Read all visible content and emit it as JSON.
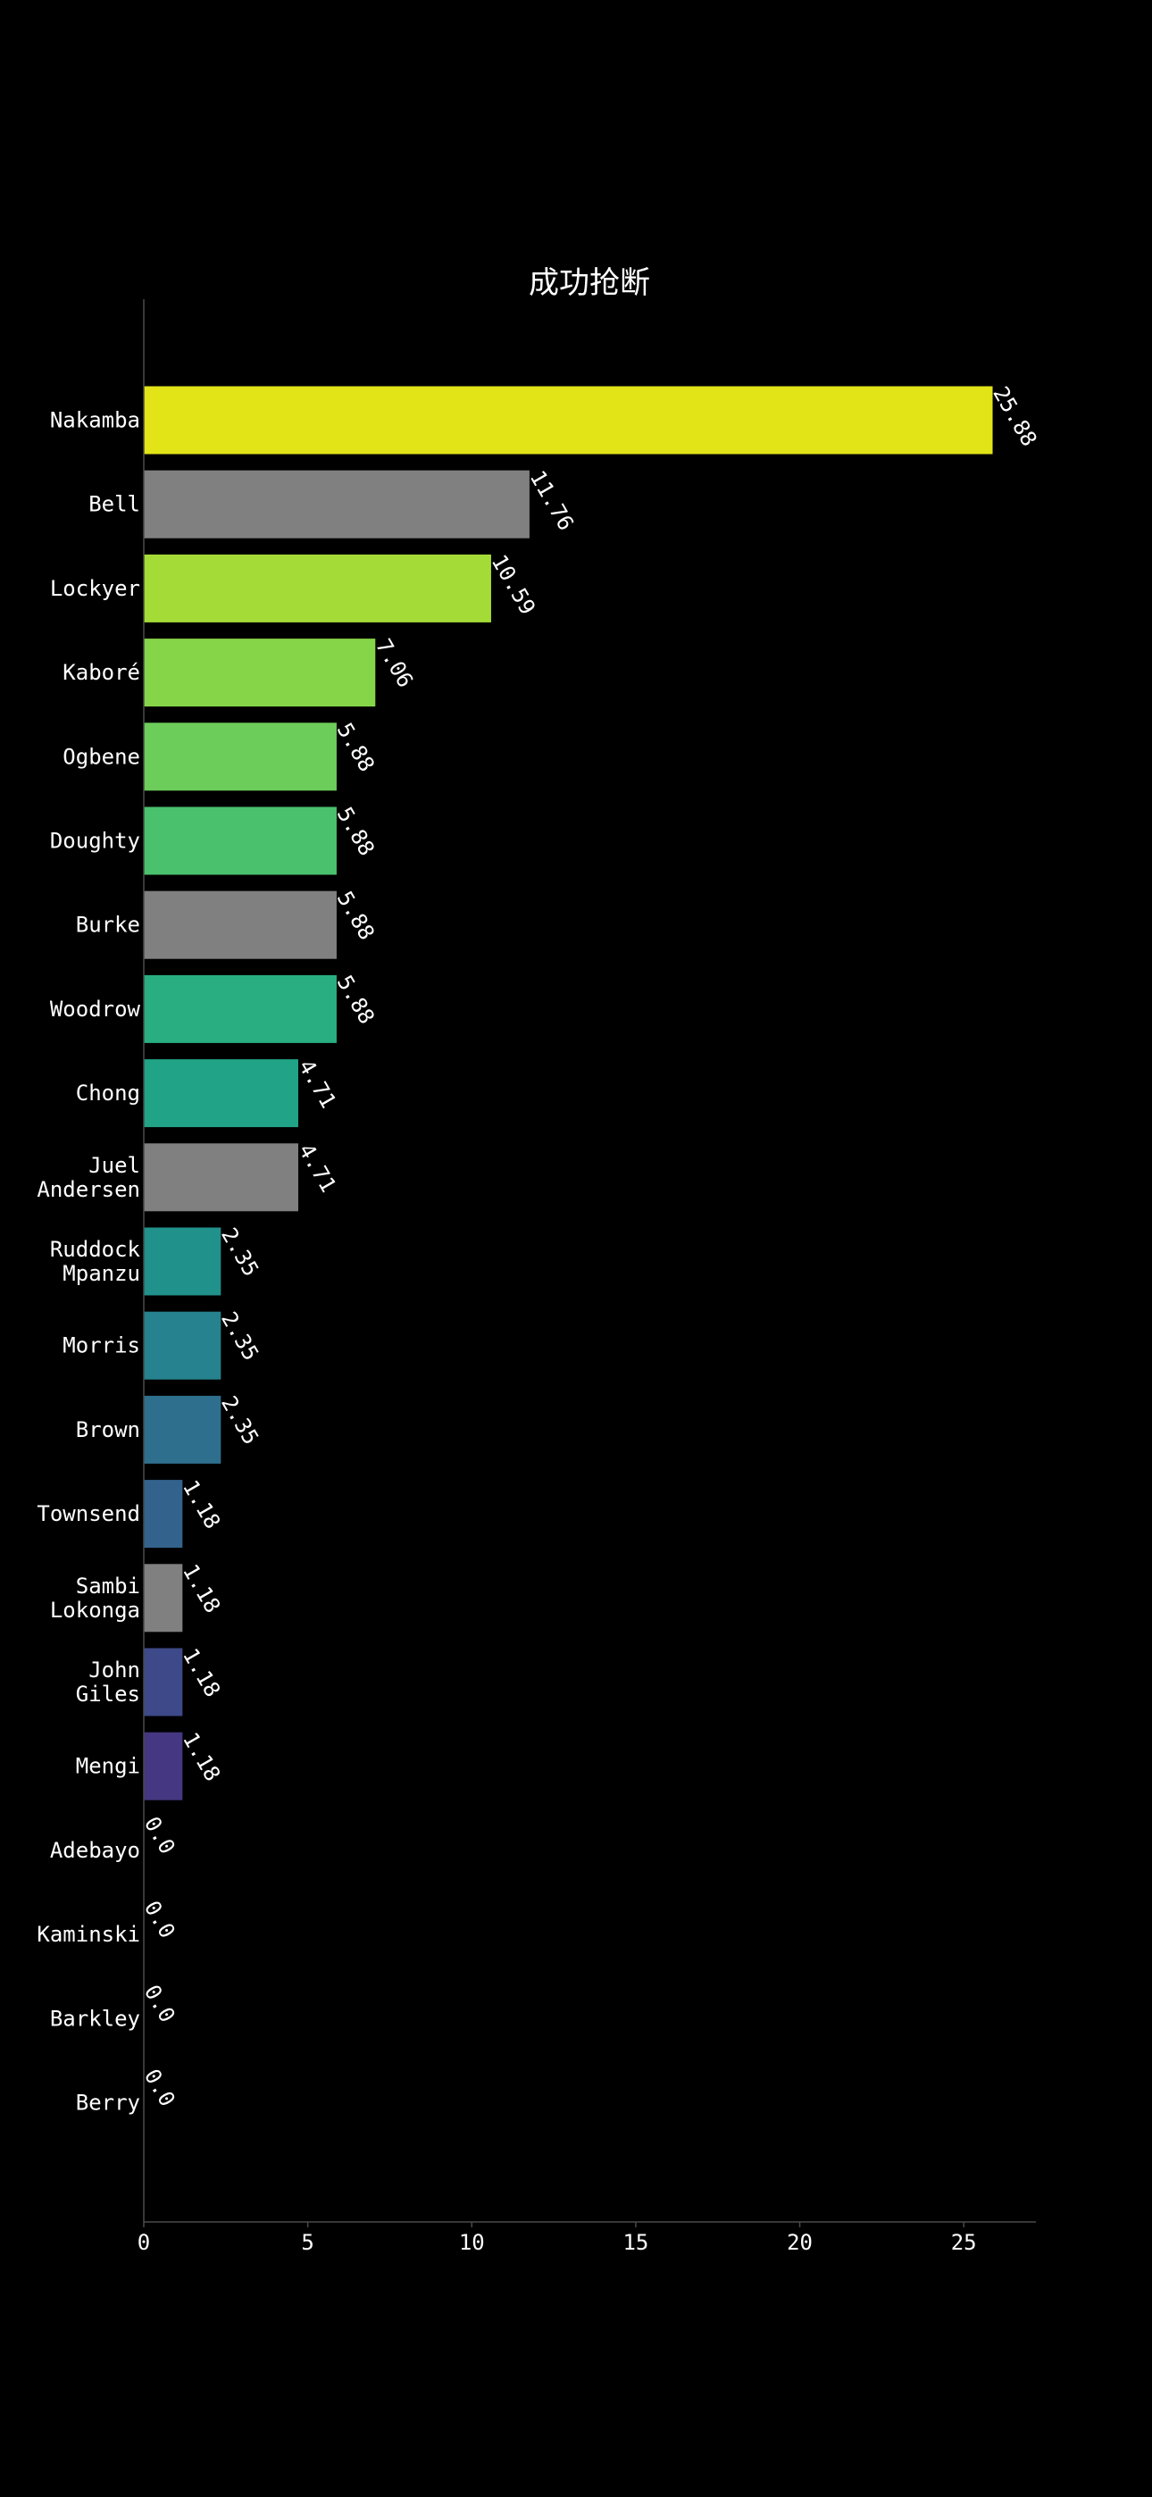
{
  "chart_data": {
    "type": "bar",
    "orientation": "horizontal",
    "title": "成功抢断",
    "xlabel": "",
    "ylabel": "",
    "xlim": [
      0,
      27.2
    ],
    "xticks": [
      0,
      5,
      10,
      15,
      20,
      25
    ],
    "grid": false,
    "legend": "none",
    "background": "#000000",
    "text_color": "#ffffff",
    "categories": [
      [
        "Nakamba"
      ],
      [
        "Bell"
      ],
      [
        "Lockyer"
      ],
      [
        "Kaboré"
      ],
      [
        "Ogbene"
      ],
      [
        "Doughty"
      ],
      [
        "Burke"
      ],
      [
        "Woodrow"
      ],
      [
        "Chong"
      ],
      [
        "Juel",
        "Andersen"
      ],
      [
        "Ruddock",
        "Mpanzu"
      ],
      [
        "Morris"
      ],
      [
        "Brown"
      ],
      [
        "Townsend"
      ],
      [
        "Sambi",
        "Lokonga"
      ],
      [
        "John",
        "Giles"
      ],
      [
        "Mengi"
      ],
      [
        "Adebayo"
      ],
      [
        "Kaminski"
      ],
      [
        "Barkley"
      ],
      [
        "Berry"
      ]
    ],
    "values": [
      25.88,
      11.76,
      10.59,
      7.06,
      5.88,
      5.88,
      5.88,
      5.88,
      4.71,
      4.71,
      2.35,
      2.35,
      2.35,
      1.18,
      1.18,
      1.18,
      1.18,
      0.0,
      0.0,
      0.0,
      0.0
    ],
    "value_labels": [
      "25.88",
      "11.76",
      "10.59",
      "7.06",
      "5.88",
      "5.88",
      "5.88",
      "5.88",
      "4.71",
      "4.71",
      "2.35",
      "2.35",
      "2.35",
      "1.18",
      "1.18",
      "1.18",
      "1.18",
      "0.0",
      "0.0",
      "0.0",
      "0.0"
    ],
    "colors": [
      "#e2e418",
      "#808080",
      "#a5db36",
      "#86d549",
      "#6ccd5a",
      "#4ac16d",
      "#808080",
      "#28ae80",
      "#20a386",
      "#808080",
      "#21918c",
      "#26828e",
      "#2e6f8e",
      "#33638d",
      "#808080",
      "#3e4989",
      "#453781",
      "#482374",
      "#48186a",
      "#440154",
      "#440154"
    ]
  }
}
